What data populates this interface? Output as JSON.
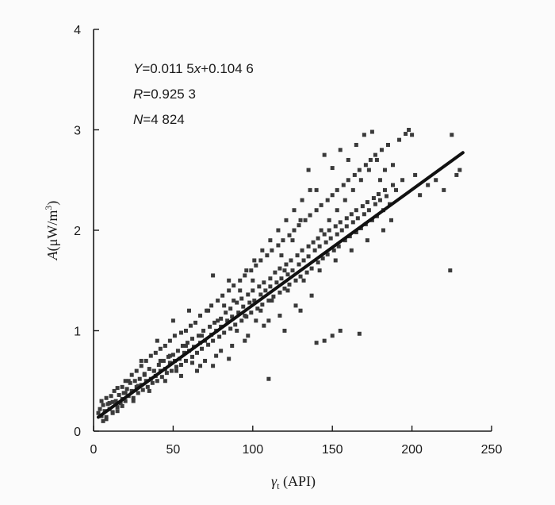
{
  "chart_data": {
    "type": "scatter",
    "title": "",
    "xlabel_symbol": "γ",
    "xlabel_sub": "t",
    "xlabel_unit": " (API)",
    "ylabel_symbol": "A",
    "ylabel_unit_pre": "(μW/m",
    "ylabel_unit_sup": "3",
    "ylabel_unit_post": ")",
    "xlim": [
      0,
      250
    ],
    "ylim": [
      0,
      4
    ],
    "x_ticks": [
      {
        "value": 0,
        "label": "0"
      },
      {
        "value": 50,
        "label": "50"
      },
      {
        "value": 100,
        "label": "100"
      },
      {
        "value": 150,
        "label": "150"
      },
      {
        "value": 200,
        "label": "200"
      },
      {
        "value": 250,
        "label": "250"
      }
    ],
    "y_ticks": [
      {
        "value": 0,
        "label": "0"
      },
      {
        "value": 1,
        "label": "1"
      },
      {
        "value": 2,
        "label": "2"
      },
      {
        "value": 3,
        "label": "3"
      },
      {
        "value": 4,
        "label": "4"
      }
    ],
    "grid": false,
    "annotations": {
      "equation": {
        "y_var": "Y",
        "rest": "=0.011 5",
        "x_var": "x",
        "tail": "+0.104 6"
      },
      "r": {
        "var": "R",
        "value": "=0.925 3"
      },
      "n": {
        "var": "N",
        "value": "=4 824"
      }
    },
    "fit": {
      "slope": 0.0115,
      "intercept": 0.1046,
      "x_range": [
        3,
        232
      ]
    },
    "points": [
      [
        3,
        0.18
      ],
      [
        4,
        0.22
      ],
      [
        5,
        0.15
      ],
      [
        5,
        0.3
      ],
      [
        6,
        0.26
      ],
      [
        7,
        0.2
      ],
      [
        8,
        0.33
      ],
      [
        8,
        0.14
      ],
      [
        9,
        0.27
      ],
      [
        10,
        0.22
      ],
      [
        11,
        0.35
      ],
      [
        12,
        0.29
      ],
      [
        12,
        0.19
      ],
      [
        13,
        0.4
      ],
      [
        14,
        0.3
      ],
      [
        15,
        0.24
      ],
      [
        15,
        0.43
      ],
      [
        16,
        0.36
      ],
      [
        17,
        0.28
      ],
      [
        18,
        0.44
      ],
      [
        18,
        0.32
      ],
      [
        19,
        0.38
      ],
      [
        20,
        0.3
      ],
      [
        20,
        0.5
      ],
      [
        21,
        0.42
      ],
      [
        22,
        0.35
      ],
      [
        23,
        0.48
      ],
      [
        24,
        0.4
      ],
      [
        24,
        0.56
      ],
      [
        25,
        0.33
      ],
      [
        26,
        0.5
      ],
      [
        27,
        0.44
      ],
      [
        27,
        0.6
      ],
      [
        28,
        0.38
      ],
      [
        29,
        0.52
      ],
      [
        30,
        0.46
      ],
      [
        30,
        0.65
      ],
      [
        31,
        0.41
      ],
      [
        32,
        0.57
      ],
      [
        33,
        0.5
      ],
      [
        33,
        0.7
      ],
      [
        34,
        0.44
      ],
      [
        35,
        0.62
      ],
      [
        36,
        0.52
      ],
      [
        36,
        0.75
      ],
      [
        37,
        0.48
      ],
      [
        38,
        0.6
      ],
      [
        39,
        0.55
      ],
      [
        39,
        0.78
      ],
      [
        40,
        0.5
      ],
      [
        41,
        0.66
      ],
      [
        42,
        0.6
      ],
      [
        42,
        0.82
      ],
      [
        43,
        0.54
      ],
      [
        44,
        0.7
      ],
      [
        45,
        0.62
      ],
      [
        45,
        0.85
      ],
      [
        46,
        0.58
      ],
      [
        47,
        0.74
      ],
      [
        48,
        0.68
      ],
      [
        48,
        0.9
      ],
      [
        49,
        0.6
      ],
      [
        50,
        0.76
      ],
      [
        51,
        0.7
      ],
      [
        51,
        0.95
      ],
      [
        52,
        0.64
      ],
      [
        53,
        0.8
      ],
      [
        54,
        0.72
      ],
      [
        55,
        0.98
      ],
      [
        55,
        0.66
      ],
      [
        56,
        0.85
      ],
      [
        57,
        0.78
      ],
      [
        58,
        1.0
      ],
      [
        58,
        0.7
      ],
      [
        59,
        0.88
      ],
      [
        60,
        0.8
      ],
      [
        61,
        1.05
      ],
      [
        62,
        0.74
      ],
      [
        62,
        0.92
      ],
      [
        63,
        0.84
      ],
      [
        64,
        1.08
      ],
      [
        65,
        0.78
      ],
      [
        66,
        0.95
      ],
      [
        67,
        0.88
      ],
      [
        67,
        1.15
      ],
      [
        68,
        0.82
      ],
      [
        69,
        1.0
      ],
      [
        70,
        0.9
      ],
      [
        71,
        1.2
      ],
      [
        72,
        0.86
      ],
      [
        73,
        1.04
      ],
      [
        74,
        0.96
      ],
      [
        74,
        1.25
      ],
      [
        75,
        0.9
      ],
      [
        76,
        1.08
      ],
      [
        77,
        1.0
      ],
      [
        78,
        1.3
      ],
      [
        79,
        0.94
      ],
      [
        80,
        1.12
      ],
      [
        80,
        1.04
      ],
      [
        81,
        1.35
      ],
      [
        82,
        0.98
      ],
      [
        83,
        1.18
      ],
      [
        84,
        1.1
      ],
      [
        85,
        1.4
      ],
      [
        86,
        1.02
      ],
      [
        86,
        1.22
      ],
      [
        87,
        1.14
      ],
      [
        88,
        1.45
      ],
      [
        89,
        1.06
      ],
      [
        90,
        1.28
      ],
      [
        91,
        1.18
      ],
      [
        92,
        1.5
      ],
      [
        93,
        1.1
      ],
      [
        93,
        1.32
      ],
      [
        94,
        1.24
      ],
      [
        95,
        1.55
      ],
      [
        96,
        1.14
      ],
      [
        97,
        1.36
      ],
      [
        98,
        1.28
      ],
      [
        99,
        1.6
      ],
      [
        99,
        1.18
      ],
      [
        100,
        1.4
      ],
      [
        101,
        1.3
      ],
      [
        102,
        1.65
      ],
      [
        103,
        1.22
      ],
      [
        104,
        1.44
      ],
      [
        105,
        1.36
      ],
      [
        105,
        1.7
      ],
      [
        106,
        1.26
      ],
      [
        107,
        1.48
      ],
      [
        108,
        1.4
      ],
      [
        109,
        1.75
      ],
      [
        110,
        1.3
      ],
      [
        111,
        1.52
      ],
      [
        111,
        1.44
      ],
      [
        112,
        1.8
      ],
      [
        113,
        1.34
      ],
      [
        114,
        1.58
      ],
      [
        115,
        1.48
      ],
      [
        116,
        1.85
      ],
      [
        117,
        1.38
      ],
      [
        117,
        1.62
      ],
      [
        118,
        1.52
      ],
      [
        119,
        1.9
      ],
      [
        120,
        1.42
      ],
      [
        121,
        1.66
      ],
      [
        122,
        1.56
      ],
      [
        123,
        1.95
      ],
      [
        123,
        1.46
      ],
      [
        124,
        1.7
      ],
      [
        125,
        1.6
      ],
      [
        126,
        2.0
      ],
      [
        127,
        1.5
      ],
      [
        128,
        1.75
      ],
      [
        129,
        1.66
      ],
      [
        129,
        2.05
      ],
      [
        130,
        1.54
      ],
      [
        131,
        1.8
      ],
      [
        132,
        1.7
      ],
      [
        133,
        2.1
      ],
      [
        134,
        1.58
      ],
      [
        135,
        1.84
      ],
      [
        135,
        1.74
      ],
      [
        136,
        2.15
      ],
      [
        137,
        1.62
      ],
      [
        138,
        1.88
      ],
      [
        139,
        1.8
      ],
      [
        140,
        2.2
      ],
      [
        141,
        1.68
      ],
      [
        141,
        1.92
      ],
      [
        142,
        1.84
      ],
      [
        143,
        2.25
      ],
      [
        144,
        1.72
      ],
      [
        145,
        1.96
      ],
      [
        146,
        1.88
      ],
      [
        147,
        2.3
      ],
      [
        147,
        1.76
      ],
      [
        148,
        2.0
      ],
      [
        149,
        1.92
      ],
      [
        150,
        2.35
      ],
      [
        151,
        1.8
      ],
      [
        152,
        2.04
      ],
      [
        153,
        1.96
      ],
      [
        153,
        2.4
      ],
      [
        154,
        1.84
      ],
      [
        155,
        2.08
      ],
      [
        156,
        2.0
      ],
      [
        157,
        2.45
      ],
      [
        158,
        1.9
      ],
      [
        159,
        2.12
      ],
      [
        159,
        2.04
      ],
      [
        160,
        2.5
      ],
      [
        161,
        1.94
      ],
      [
        162,
        2.16
      ],
      [
        163,
        2.08
      ],
      [
        164,
        2.55
      ],
      [
        165,
        1.98
      ],
      [
        165,
        2.2
      ],
      [
        166,
        2.12
      ],
      [
        167,
        2.6
      ],
      [
        168,
        2.02
      ],
      [
        169,
        2.24
      ],
      [
        170,
        2.16
      ],
      [
        171,
        2.65
      ],
      [
        171,
        2.06
      ],
      [
        172,
        2.28
      ],
      [
        173,
        2.2
      ],
      [
        174,
        2.7
      ],
      [
        175,
        2.1
      ],
      [
        176,
        2.32
      ],
      [
        177,
        2.26
      ],
      [
        177,
        2.75
      ],
      [
        178,
        2.14
      ],
      [
        179,
        2.36
      ],
      [
        180,
        2.3
      ],
      [
        181,
        2.8
      ],
      [
        182,
        2.2
      ],
      [
        183,
        2.4
      ],
      [
        184,
        2.34
      ],
      [
        185,
        2.85
      ],
      [
        186,
        2.26
      ],
      [
        188,
        2.45
      ],
      [
        190,
        2.4
      ],
      [
        192,
        2.9
      ],
      [
        194,
        2.5
      ],
      [
        196,
        2.96
      ],
      [
        198,
        3.0
      ],
      [
        200,
        2.95
      ],
      [
        202,
        2.55
      ],
      [
        135,
        2.6
      ],
      [
        140,
        2.4
      ],
      [
        145,
        2.75
      ],
      [
        150,
        2.62
      ],
      [
        155,
        2.8
      ],
      [
        160,
        2.7
      ],
      [
        165,
        2.85
      ],
      [
        170,
        2.95
      ],
      [
        175,
        2.98
      ],
      [
        180,
        2.5
      ],
      [
        110,
        0.52
      ],
      [
        140,
        0.88
      ],
      [
        145,
        0.9
      ],
      [
        150,
        0.95
      ],
      [
        155,
        1.0
      ],
      [
        167,
        0.97
      ],
      [
        120,
        1.6
      ],
      [
        100,
        1.5
      ],
      [
        125,
        1.9
      ],
      [
        130,
        2.1
      ],
      [
        90,
        1.0
      ],
      [
        95,
        0.9
      ],
      [
        85,
        1.5
      ],
      [
        75,
        1.55
      ],
      [
        60,
        1.2
      ],
      [
        50,
        1.1
      ],
      [
        40,
        0.9
      ],
      [
        30,
        0.7
      ],
      [
        70,
        0.7
      ],
      [
        80,
        0.8
      ],
      [
        224,
        1.6
      ],
      [
        225,
        2.95
      ],
      [
        228,
        2.55
      ],
      [
        230,
        2.6
      ],
      [
        220,
        2.4
      ],
      [
        210,
        2.45
      ],
      [
        205,
        2.35
      ],
      [
        215,
        2.5
      ],
      [
        120,
        1.0
      ],
      [
        130,
        1.2
      ],
      [
        110,
        1.1
      ],
      [
        105,
        1.2
      ],
      [
        95,
        1.15
      ],
      [
        88,
        1.3
      ],
      [
        78,
        1.1
      ],
      [
        68,
        0.95
      ],
      [
        58,
        0.85
      ],
      [
        48,
        0.75
      ],
      [
        38,
        0.6
      ],
      [
        28,
        0.45
      ],
      [
        18,
        0.25
      ],
      [
        12,
        0.18
      ],
      [
        8,
        0.12
      ],
      [
        6,
        0.1
      ],
      [
        22,
        0.5
      ],
      [
        32,
        0.56
      ],
      [
        42,
        0.7
      ],
      [
        52,
        0.6
      ],
      [
        62,
        0.68
      ],
      [
        72,
        1.2
      ],
      [
        82,
        1.25
      ],
      [
        92,
        1.4
      ],
      [
        102,
        1.1
      ],
      [
        112,
        1.3
      ],
      [
        122,
        1.4
      ],
      [
        132,
        1.5
      ],
      [
        142,
        1.6
      ],
      [
        152,
        1.7
      ],
      [
        162,
        1.8
      ],
      [
        172,
        1.9
      ],
      [
        182,
        2.0
      ],
      [
        187,
        2.1
      ],
      [
        137,
        1.35
      ],
      [
        127,
        1.25
      ],
      [
        117,
        1.15
      ],
      [
        107,
        1.05
      ],
      [
        97,
        0.95
      ],
      [
        87,
        0.85
      ],
      [
        77,
        0.75
      ],
      [
        67,
        0.65
      ],
      [
        143,
        2.0
      ],
      [
        148,
        2.1
      ],
      [
        153,
        2.2
      ],
      [
        158,
        2.3
      ],
      [
        163,
        2.4
      ],
      [
        168,
        2.5
      ],
      [
        173,
        2.6
      ],
      [
        178,
        2.7
      ],
      [
        183,
        2.6
      ],
      [
        188,
        2.65
      ],
      [
        96,
        1.6
      ],
      [
        101,
        1.7
      ],
      [
        106,
        1.8
      ],
      [
        111,
        1.9
      ],
      [
        116,
        2.0
      ],
      [
        121,
        2.1
      ],
      [
        126,
        2.2
      ],
      [
        131,
        2.3
      ],
      [
        136,
        2.4
      ],
      [
        118,
        1.75
      ],
      [
        55,
        0.55
      ],
      [
        65,
        0.6
      ],
      [
        75,
        0.65
      ],
      [
        85,
        0.72
      ],
      [
        45,
        0.5
      ],
      [
        35,
        0.4
      ],
      [
        25,
        0.3
      ],
      [
        15,
        0.2
      ],
      [
        10,
        0.28
      ],
      [
        20,
        0.38
      ]
    ]
  }
}
